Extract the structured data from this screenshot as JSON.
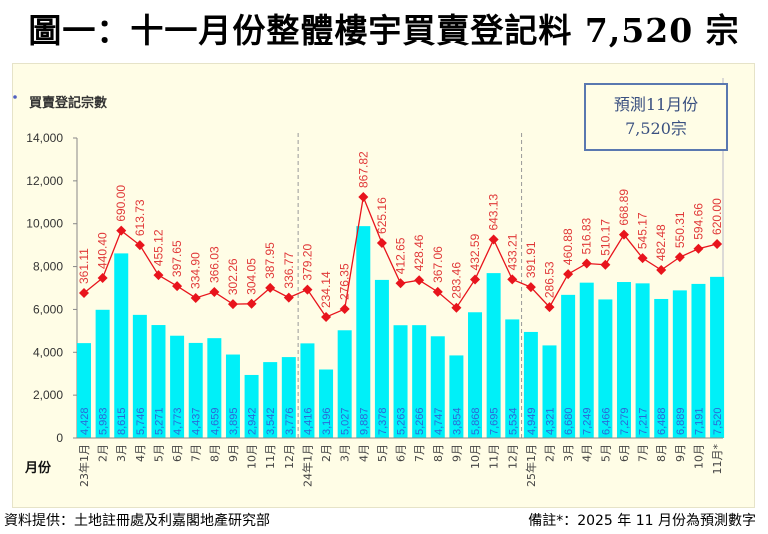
{
  "title": "圖一：十一月份整體樓宇買賣登記料 7,520 宗",
  "footer": {
    "source": "資料提供：土地註冊處及利嘉閣地產研究部",
    "note": "備註*：2025 年 11 月份為預測數字"
  },
  "chart_data": {
    "type": "bar",
    "ylabel": "買賣登記宗數",
    "xlabel": "月份",
    "ylim": [
      0,
      14000
    ],
    "yticks": [
      "0",
      "2,000",
      "4,000",
      "6,000",
      "8,000",
      "10,000",
      "12,000",
      "14,000"
    ],
    "grid": false,
    "annotation": {
      "line1": "預測11月份",
      "line2": "7,520宗"
    },
    "categories": [
      "23年1月",
      "2月",
      "3月",
      "4月",
      "5月",
      "6月",
      "7月",
      "8月",
      "9月",
      "10月",
      "11月",
      "12月",
      "24年1月",
      "2月",
      "3月",
      "4月",
      "5月",
      "6月",
      "7月",
      "8月",
      "9月",
      "10月",
      "11月",
      "12月",
      "25年1月",
      "2月",
      "3月",
      "4月",
      "5月",
      "6月",
      "7月",
      "8月",
      "9月",
      "10月",
      "11月*"
    ],
    "series": [
      {
        "type": "bar",
        "color": "#00f0f8",
        "values": [
          4428,
          5983,
          8615,
          5746,
          5271,
          4773,
          4437,
          4659,
          3895,
          2942,
          3542,
          3776,
          4416,
          3196,
          5027,
          9887,
          7378,
          5263,
          5266,
          4747,
          3854,
          5868,
          7695,
          5534,
          4949,
          4321,
          6680,
          7249,
          6466,
          7279,
          7217,
          6488,
          6889,
          7191,
          7520
        ],
        "labels": [
          "4,428",
          "5,983",
          "8,615",
          "5,746",
          "5,271",
          "4,773",
          "4,437",
          "4,659",
          "3,895",
          "2,942",
          "3,542",
          "3,776",
          "4,416",
          "3,196",
          "5,027",
          "9,887",
          "7,378",
          "5,263",
          "5,266",
          "4,747",
          "3,854",
          "5,868",
          "7,695",
          "5,534",
          "4,949",
          "4,321",
          "6,680",
          "7,249",
          "6,466",
          "7,279",
          "7,217",
          "6,488",
          "6,889",
          "7,191",
          "7,520"
        ]
      },
      {
        "type": "line",
        "color": "#e8141c",
        "values": [
          361.11,
          440.4,
          690.0,
          613.73,
          455.12,
          397.65,
          334.9,
          366.03,
          302.26,
          304.05,
          387.95,
          336.77,
          379.2,
          234.14,
          276.35,
          867.82,
          625.16,
          412.65,
          428.46,
          367.06,
          283.46,
          432.59,
          643.13,
          433.21,
          391.91,
          286.53,
          460.88,
          516.83,
          510.17,
          668.89,
          545.17,
          482.48,
          550.31,
          594.66,
          620.0
        ],
        "labels": [
          "361.11",
          "440.40",
          "690.00",
          "613.73",
          "455.12",
          "397.65",
          "334.90",
          "366.03",
          "302.26",
          "304.05",
          "387.95",
          "336.77",
          "379.20",
          "234.14",
          "276.35",
          "867.82",
          "625.16",
          "412.65",
          "428.46",
          "367.06",
          "283.46",
          "432.59",
          "643.13",
          "433.21",
          "391.91",
          "286.53",
          "460.88",
          "516.83",
          "510.17",
          "668.89",
          "545.17",
          "482.48",
          "550.31",
          "594.66",
          "620.00"
        ]
      }
    ]
  }
}
